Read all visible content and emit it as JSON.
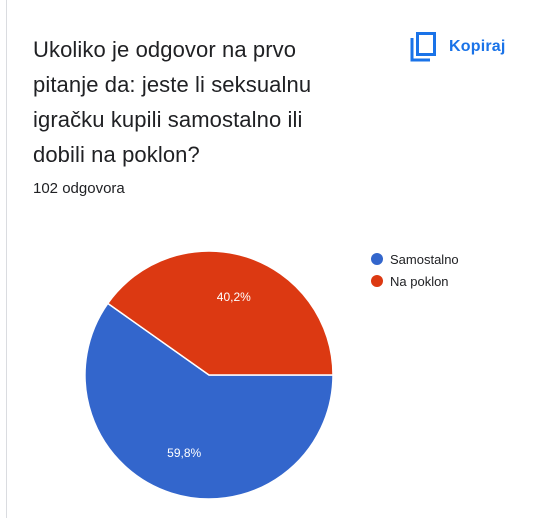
{
  "question": {
    "title": "Ukoliko je odgovor na prvo pitanje da: jeste li seksualnu igračku kupili samostalno ili dobili na poklon?",
    "response_count": "102 odgovora"
  },
  "copy_button": {
    "label": "Kopiraj",
    "icon": "copy-icon",
    "color": "#1a73e8"
  },
  "chart_data": {
    "type": "pie",
    "slices": [
      {
        "label": "Samostalno",
        "value": 59.8,
        "display": "59,8%",
        "color": "#3366cc"
      },
      {
        "label": "Na poklon",
        "value": 40.2,
        "display": "40,2%",
        "color": "#dc3912"
      }
    ],
    "start_angle_deg": 0,
    "direction": "clockwise",
    "legend_position": "right"
  }
}
